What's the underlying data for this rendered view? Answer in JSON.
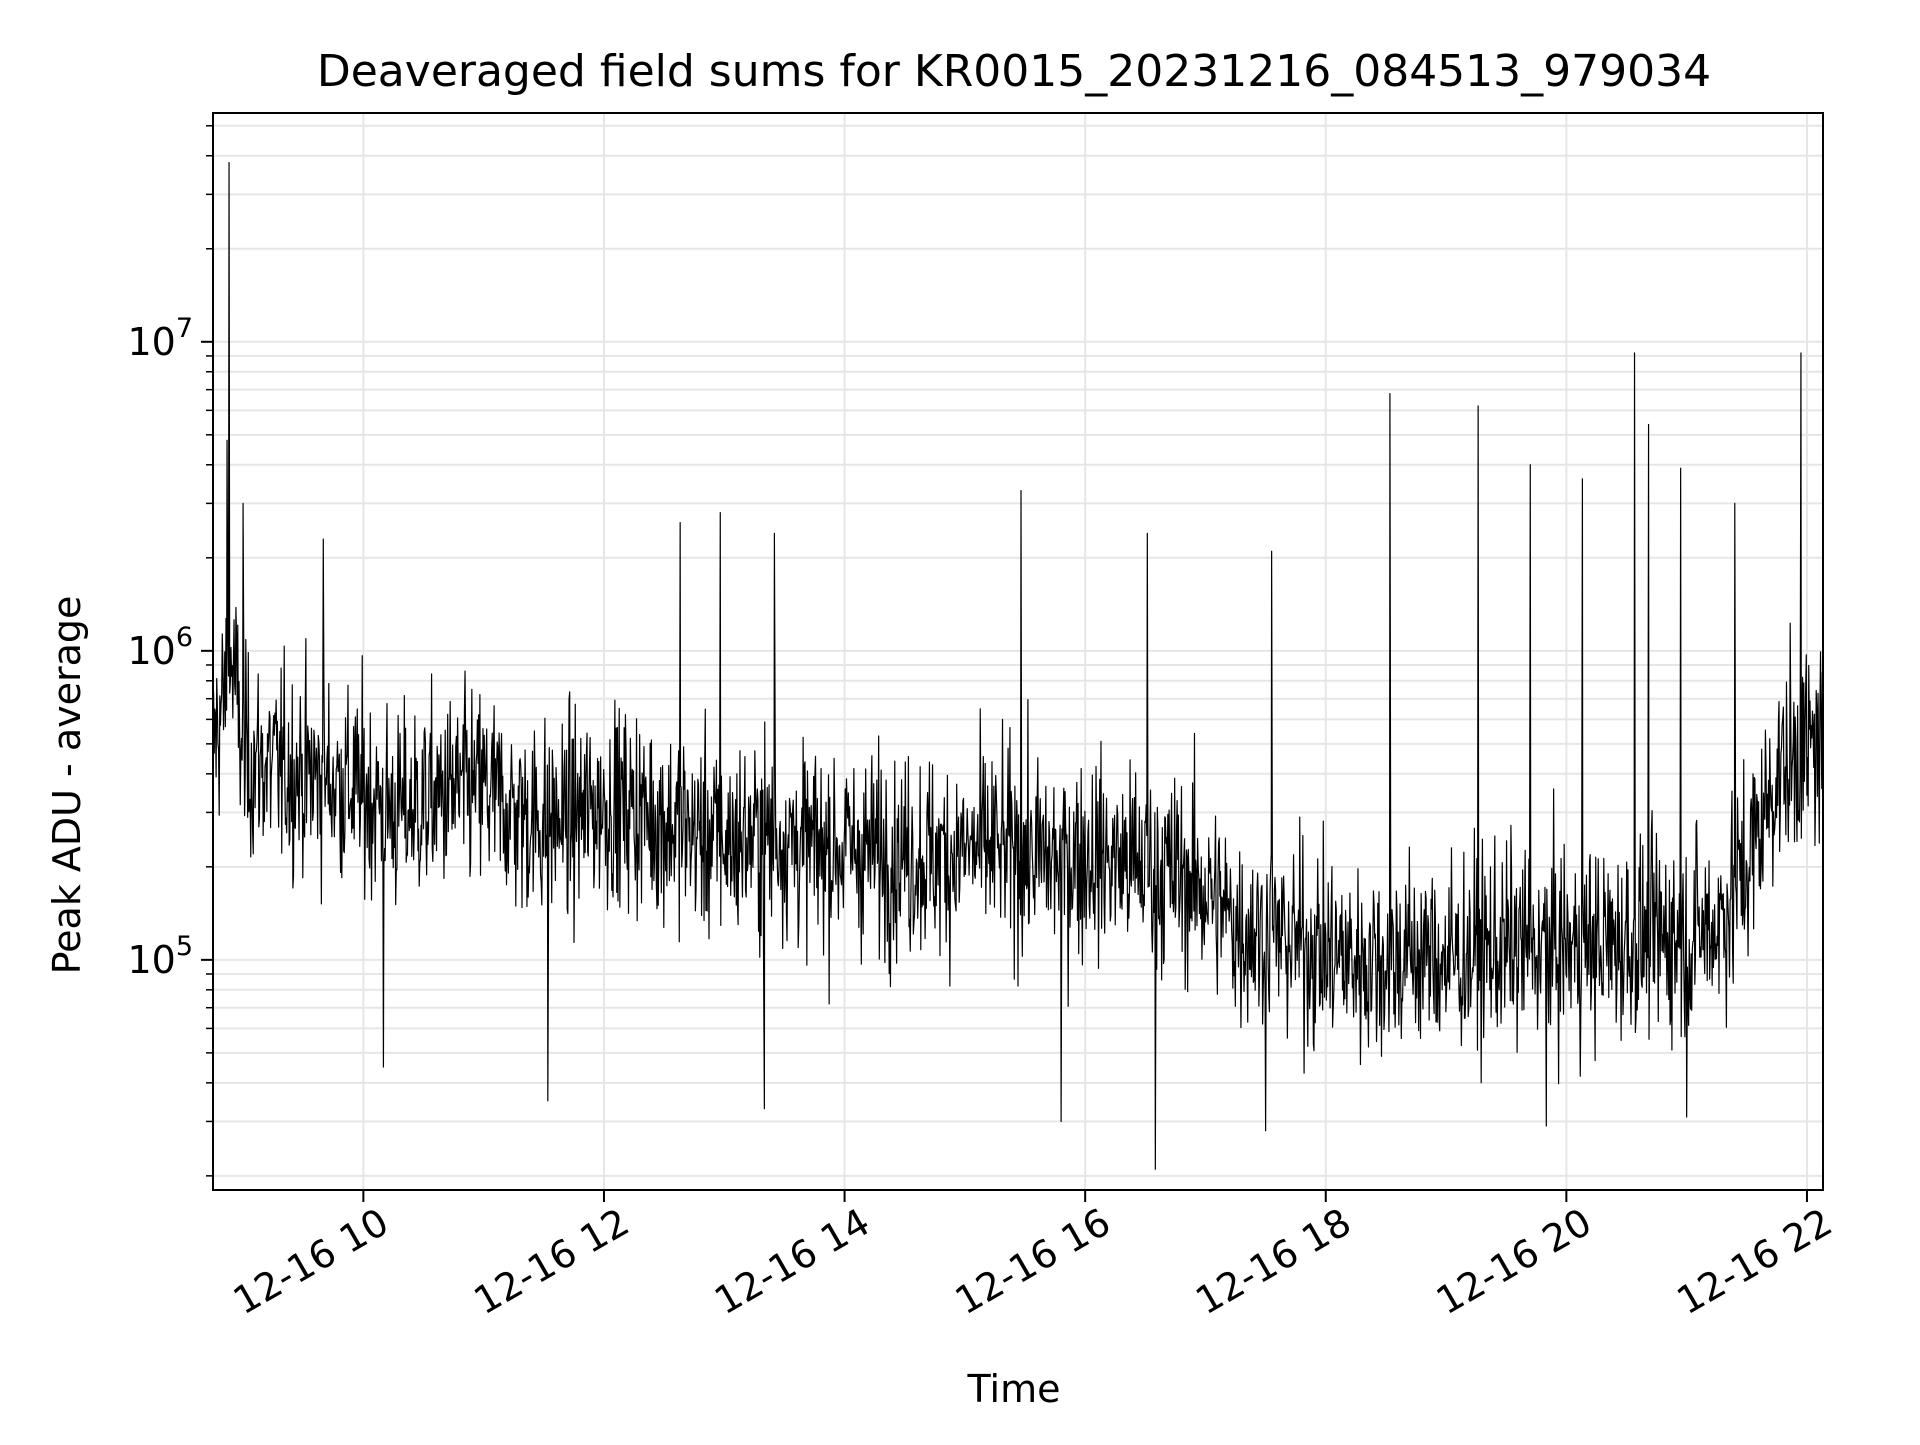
{
  "chart_data": {
    "type": "line",
    "title": "Deaveraged field sums for KR0015_20231216_084513_979034",
    "xlabel": "Time",
    "ylabel": "Peak ADU - average",
    "x_range": [
      "2023-12-16 08:45",
      "2023-12-16 22:08"
    ],
    "y_scale": "log",
    "ylim": [
      18000,
      55000000
    ],
    "grid": true,
    "grid_minor": true,
    "line_color": "#000000",
    "grid_color": "#e6e6e6",
    "x_ticks": [
      {
        "value": "2023-12-16 10:00",
        "label": "12-16 10"
      },
      {
        "value": "2023-12-16 12:00",
        "label": "12-16 12"
      },
      {
        "value": "2023-12-16 14:00",
        "label": "12-16 14"
      },
      {
        "value": "2023-12-16 16:00",
        "label": "12-16 16"
      },
      {
        "value": "2023-12-16 18:00",
        "label": "12-16 18"
      },
      {
        "value": "2023-12-16 20:00",
        "label": "12-16 20"
      },
      {
        "value": "2023-12-16 22:00",
        "label": "12-16 22"
      }
    ],
    "y_ticks": [
      {
        "value": 100000,
        "base": "10",
        "exp": "5"
      },
      {
        "value": 1000000,
        "base": "10",
        "exp": "6"
      },
      {
        "value": 10000000,
        "base": "10",
        "exp": "7"
      }
    ],
    "series": [
      {
        "x": [
          "2023-12-16 08:45",
          "2023-12-16 08:55",
          "2023-12-16 09:00",
          "2023-12-16 09:15",
          "2023-12-16 09:30",
          "2023-12-16 09:45",
          "2023-12-16 10:00",
          "2023-12-16 10:15",
          "2023-12-16 10:30",
          "2023-12-16 10:45",
          "2023-12-16 11:00",
          "2023-12-16 11:15",
          "2023-12-16 11:30",
          "2023-12-16 11:45",
          "2023-12-16 12:00",
          "2023-12-16 12:15",
          "2023-12-16 12:30",
          "2023-12-16 12:45",
          "2023-12-16 13:00",
          "2023-12-16 13:15",
          "2023-12-16 13:30",
          "2023-12-16 13:45",
          "2023-12-16 14:00",
          "2023-12-16 14:15",
          "2023-12-16 14:30",
          "2023-12-16 14:45",
          "2023-12-16 15:00",
          "2023-12-16 15:15",
          "2023-12-16 15:30",
          "2023-12-16 15:45",
          "2023-12-16 16:00",
          "2023-12-16 16:15",
          "2023-12-16 16:30",
          "2023-12-16 16:45",
          "2023-12-16 17:00",
          "2023-12-16 17:15",
          "2023-12-16 17:30",
          "2023-12-16 17:45",
          "2023-12-16 18:00",
          "2023-12-16 18:15",
          "2023-12-16 18:30",
          "2023-12-16 18:45",
          "2023-12-16 19:00",
          "2023-12-16 19:15",
          "2023-12-16 19:30",
          "2023-12-16 19:45",
          "2023-12-16 20:00",
          "2023-12-16 20:15",
          "2023-12-16 20:30",
          "2023-12-16 20:45",
          "2023-12-16 21:00",
          "2023-12-16 21:15",
          "2023-12-16 21:30",
          "2023-12-16 21:45",
          "2023-12-16 22:00",
          "2023-12-16 22:08"
        ],
        "y": [
          500000,
          900000,
          450000,
          420000,
          400000,
          380000,
          350000,
          300000,
          320000,
          350000,
          360000,
          300000,
          280000,
          290000,
          320000,
          310000,
          280000,
          260000,
          240000,
          250000,
          250000,
          230000,
          230000,
          225000,
          220000,
          215000,
          225000,
          230000,
          220000,
          210000,
          220000,
          210000,
          200000,
          190000,
          170000,
          130000,
          120000,
          115000,
          105000,
          100000,
          100000,
          105000,
          100000,
          105000,
          110000,
          110000,
          110000,
          112000,
          115000,
          120000,
          120000,
          130000,
          200000,
          400000,
          480000,
          500000
        ]
      }
    ],
    "spikes": [
      {
        "x": "2023-12-16 08:53",
        "y": 38000000
      },
      {
        "x": "2023-12-16 08:52",
        "y": 4800000
      },
      {
        "x": "2023-12-16 09:00",
        "y": 3000000
      },
      {
        "x": "2023-12-16 09:40",
        "y": 2300000
      },
      {
        "x": "2023-12-16 12:38",
        "y": 2600000
      },
      {
        "x": "2023-12-16 12:58",
        "y": 2800000
      },
      {
        "x": "2023-12-16 13:25",
        "y": 2400000
      },
      {
        "x": "2023-12-16 15:28",
        "y": 3300000
      },
      {
        "x": "2023-12-16 16:31",
        "y": 2400000
      },
      {
        "x": "2023-12-16 17:33",
        "y": 2100000
      },
      {
        "x": "2023-12-16 18:32",
        "y": 6800000
      },
      {
        "x": "2023-12-16 19:16",
        "y": 6200000
      },
      {
        "x": "2023-12-16 19:42",
        "y": 4000000
      },
      {
        "x": "2023-12-16 20:08",
        "y": 3600000
      },
      {
        "x": "2023-12-16 20:34",
        "y": 9200000
      },
      {
        "x": "2023-12-16 20:41",
        "y": 5400000
      },
      {
        "x": "2023-12-16 20:57",
        "y": 3900000
      },
      {
        "x": "2023-12-16 21:24",
        "y": 3000000
      },
      {
        "x": "2023-12-16 21:57",
        "y": 9200000
      }
    ],
    "dips": [
      {
        "x": "2023-12-16 10:10",
        "y": 45000
      },
      {
        "x": "2023-12-16 11:32",
        "y": 35000
      },
      {
        "x": "2023-12-16 13:20",
        "y": 33000
      },
      {
        "x": "2023-12-16 15:48",
        "y": 30000
      },
      {
        "x": "2023-12-16 16:35",
        "y": 21000
      },
      {
        "x": "2023-12-16 17:30",
        "y": 28000
      },
      {
        "x": "2023-12-16 19:50",
        "y": 29000
      },
      {
        "x": "2023-12-16 21:00",
        "y": 31000
      }
    ]
  }
}
